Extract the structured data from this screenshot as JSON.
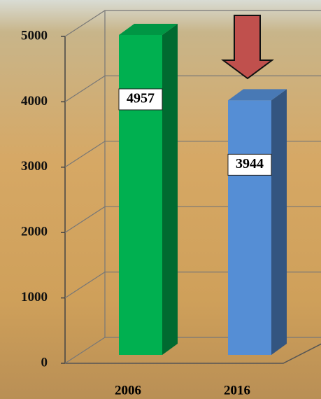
{
  "chart_data": {
    "type": "bar",
    "categories": [
      "2006",
      "2016"
    ],
    "values": [
      4957,
      3944
    ],
    "colors": [
      "#00b050",
      "#558ed5"
    ],
    "ylim": [
      0,
      5000
    ],
    "yticks": [
      0,
      1000,
      2000,
      3000,
      4000,
      5000
    ],
    "grid": true
  }
}
